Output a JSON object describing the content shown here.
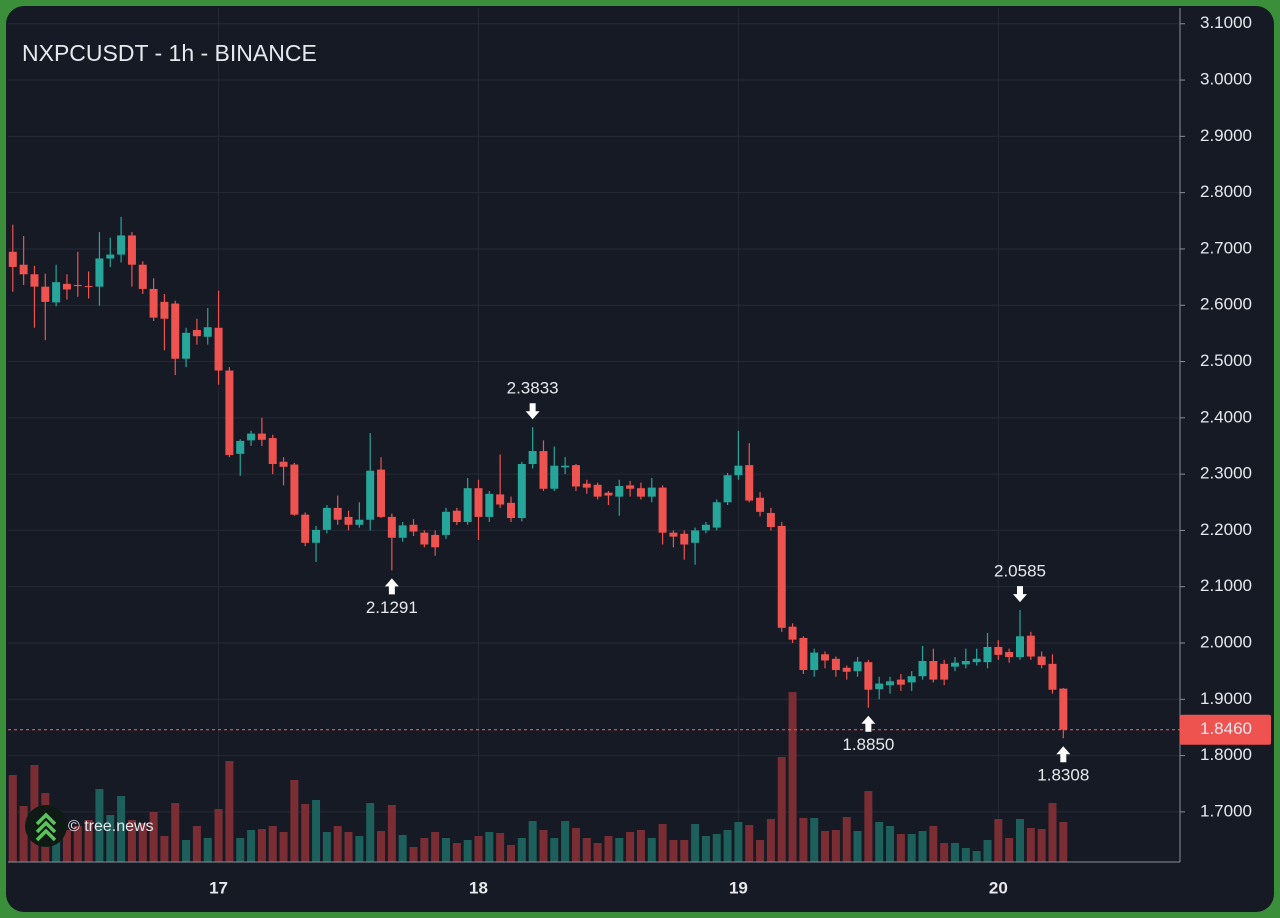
{
  "chart_data": {
    "type": "candlestick",
    "title": "NXPCUSDT - 1h - BINANCE",
    "categories": [
      null,
      null,
      null,
      null,
      null,
      null,
      null,
      null,
      null,
      null,
      null,
      null,
      null,
      null,
      null,
      null,
      null,
      null,
      null,
      "17",
      null,
      null,
      null,
      null,
      null,
      null,
      null,
      null,
      null,
      null,
      null,
      null,
      null,
      null,
      null,
      null,
      null,
      null,
      null,
      null,
      null,
      null,
      null,
      "18",
      null,
      null,
      null,
      null,
      null,
      null,
      null,
      null,
      null,
      null,
      null,
      null,
      null,
      null,
      null,
      null,
      null,
      null,
      null,
      null,
      null,
      null,
      null,
      "19",
      null,
      null,
      null,
      null,
      null,
      null,
      null,
      null,
      null,
      null,
      null,
      null,
      null,
      null,
      null,
      null,
      null,
      null,
      null,
      null,
      null,
      null,
      null,
      "20",
      null,
      null,
      null,
      null,
      null,
      null
    ],
    "open": [
      2.695,
      2.672,
      2.655,
      2.633,
      2.605,
      2.638,
      2.636,
      2.634,
      2.633,
      2.683,
      2.69,
      2.724,
      2.672,
      2.629,
      2.606,
      2.603,
      2.505,
      2.556,
      2.544,
      2.56,
      2.484,
      2.336,
      2.36,
      2.372,
      2.364,
      2.322,
      2.317,
      2.228,
      2.178,
      2.201,
      2.24,
      2.224,
      2.21,
      2.219,
      2.308,
      2.224,
      2.187,
      2.21,
      2.196,
      2.192,
      2.192,
      2.235,
      2.215,
      2.275,
      2.224,
      2.264,
      2.249,
      2.222,
      2.318,
      2.341,
      2.274,
      2.312,
      2.316,
      2.283,
      2.281,
      2.267,
      2.26,
      2.28,
      2.275,
      2.26,
      2.276,
      2.196,
      2.194,
      2.178,
      2.2,
      2.205,
      2.25,
      2.298,
      2.316,
      2.258,
      2.231,
      2.208,
      2.029,
      2.009,
      1.952,
      1.98,
      1.972,
      1.956,
      1.95,
      1.966,
      1.918,
      1.925,
      1.935,
      1.93,
      1.941,
      1.968,
      1.963,
      1.958,
      1.962,
      1.966,
      1.966,
      1.993,
      1.984,
      1.975,
      2.013,
      1.976,
      1.963,
      1.919
    ],
    "high": [
      2.743,
      2.723,
      2.67,
      2.656,
      2.672,
      2.655,
      2.695,
      2.66,
      2.73,
      2.72,
      2.757,
      2.73,
      2.678,
      2.648,
      2.62,
      2.608,
      2.56,
      2.576,
      2.595,
      2.626,
      2.49,
      2.362,
      2.377,
      2.4,
      2.37,
      2.33,
      2.32,
      2.232,
      2.208,
      2.245,
      2.262,
      2.235,
      2.25,
      2.373,
      2.33,
      2.23,
      2.215,
      2.22,
      2.2,
      2.2,
      2.24,
      2.24,
      2.293,
      2.29,
      2.27,
      2.335,
      2.26,
      2.322,
      2.3833,
      2.36,
      2.349,
      2.33,
      2.318,
      2.29,
      2.285,
      2.27,
      2.29,
      2.288,
      2.285,
      2.293,
      2.28,
      2.2,
      2.2,
      2.205,
      2.215,
      2.255,
      2.302,
      2.377,
      2.355,
      2.268,
      2.24,
      2.215,
      2.035,
      2.012,
      1.99,
      1.985,
      1.976,
      1.96,
      1.975,
      1.97,
      1.94,
      1.94,
      1.945,
      1.95,
      1.995,
      1.99,
      1.97,
      1.975,
      1.99,
      1.99,
      2.018,
      2.005,
      1.99,
      2.0585,
      2.02,
      1.985,
      1.98,
      1.92
    ],
    "low": [
      2.624,
      2.636,
      2.56,
      2.538,
      2.598,
      2.61,
      2.615,
      2.612,
      2.599,
      2.668,
      2.676,
      2.633,
      2.62,
      2.572,
      2.52,
      2.476,
      2.49,
      2.53,
      2.53,
      2.459,
      2.33,
      2.297,
      2.35,
      2.35,
      2.3,
      2.28,
      2.226,
      2.172,
      2.144,
      2.195,
      2.21,
      2.2,
      2.205,
      2.2,
      2.222,
      2.1291,
      2.18,
      2.19,
      2.17,
      2.155,
      2.185,
      2.21,
      2.21,
      2.183,
      2.215,
      2.24,
      2.215,
      2.216,
      2.31,
      2.27,
      2.27,
      2.3,
      2.27,
      2.265,
      2.255,
      2.245,
      2.226,
      2.26,
      2.255,
      2.25,
      2.175,
      2.17,
      2.148,
      2.139,
      2.195,
      2.2,
      2.245,
      2.29,
      2.25,
      2.225,
      2.2,
      2.02,
      2.0,
      1.945,
      1.94,
      1.955,
      1.94,
      1.935,
      1.94,
      1.885,
      1.9,
      1.91,
      1.915,
      1.915,
      1.935,
      1.93,
      1.925,
      1.95,
      1.955,
      1.96,
      1.955,
      1.97,
      1.965,
      1.97,
      1.97,
      1.955,
      1.91,
      1.8308
    ],
    "close": [
      2.668,
      2.655,
      2.633,
      2.606,
      2.641,
      2.628,
      2.634,
      2.633,
      2.683,
      2.69,
      2.724,
      2.672,
      2.629,
      2.578,
      2.576,
      2.505,
      2.551,
      2.545,
      2.561,
      2.484,
      2.334,
      2.359,
      2.372,
      2.361,
      2.318,
      2.313,
      2.228,
      2.178,
      2.201,
      2.24,
      2.219,
      2.21,
      2.219,
      2.306,
      2.224,
      2.187,
      2.209,
      2.198,
      2.175,
      2.17,
      2.233,
      2.215,
      2.275,
      2.224,
      2.265,
      2.246,
      2.222,
      2.318,
      2.341,
      2.274,
      2.315,
      2.315,
      2.278,
      2.276,
      2.26,
      2.262,
      2.279,
      2.274,
      2.26,
      2.276,
      2.196,
      2.189,
      2.175,
      2.2,
      2.21,
      2.25,
      2.298,
      2.315,
      2.253,
      2.233,
      2.206,
      2.027,
      2.006,
      1.952,
      1.983,
      1.969,
      1.952,
      1.949,
      1.967,
      1.917,
      1.928,
      1.932,
      1.926,
      1.941,
      1.968,
      1.935,
      1.935,
      1.965,
      1.968,
      1.972,
      1.993,
      1.979,
      1.975,
      2.012,
      1.976,
      1.961,
      1.917,
      1.846
    ],
    "volume": [
      87,
      56,
      97,
      69,
      52,
      32,
      36,
      42,
      73,
      47,
      66,
      42,
      39,
      50,
      26,
      59,
      22,
      36,
      24,
      53,
      101,
      24,
      32,
      33,
      36,
      30,
      82,
      58,
      62,
      30,
      36,
      30,
      26,
      59,
      31,
      57,
      27,
      15,
      24,
      30,
      24,
      19,
      22,
      26,
      30,
      29,
      17,
      24,
      41,
      32,
      24,
      41,
      34,
      24,
      19,
      26,
      24,
      30,
      32,
      24,
      38,
      22,
      22,
      38,
      26,
      28,
      32,
      40,
      37,
      22,
      43,
      105,
      170,
      44,
      44,
      31,
      32,
      45,
      31,
      71,
      40,
      36,
      28,
      28,
      31,
      36,
      19,
      19,
      14,
      11,
      22,
      43,
      24,
      43,
      34,
      33,
      59,
      40
    ],
    "up_color": "#26a69a",
    "down_color": "#ef5350",
    "up_volume_color": "#1d5f5a",
    "down_volume_color": "#7a2e33",
    "ylim": [
      1.611,
      3.128
    ],
    "yticks": [
      {
        "value": 1.7,
        "label": "1.7000"
      },
      {
        "value": 1.8,
        "label": "1.8000"
      },
      {
        "value": 1.9,
        "label": "1.9000"
      },
      {
        "value": 2.0,
        "label": "2.0000"
      },
      {
        "value": 2.1,
        "label": "2.1000"
      },
      {
        "value": 2.2,
        "label": "2.2000"
      },
      {
        "value": 2.3,
        "label": "2.3000"
      },
      {
        "value": 2.4,
        "label": "2.4000"
      },
      {
        "value": 2.5,
        "label": "2.5000"
      },
      {
        "value": 2.6,
        "label": "2.6000"
      },
      {
        "value": 2.7,
        "label": "2.7000"
      },
      {
        "value": 2.8,
        "label": "2.8000"
      },
      {
        "value": 2.9,
        "label": "2.9000"
      },
      {
        "value": 3.0,
        "label": "3.0000"
      },
      {
        "value": 3.1,
        "label": "3.1000"
      }
    ],
    "grid": true,
    "last_price": {
      "value": 1.846,
      "label": "1.8460"
    },
    "annotations": [
      2.3833,
      2.1291,
      {
        "value": 1.885,
        "label": "1.8850"
      },
      2.0585,
      1.8308
    ]
  },
  "watermark": "© tree.news"
}
